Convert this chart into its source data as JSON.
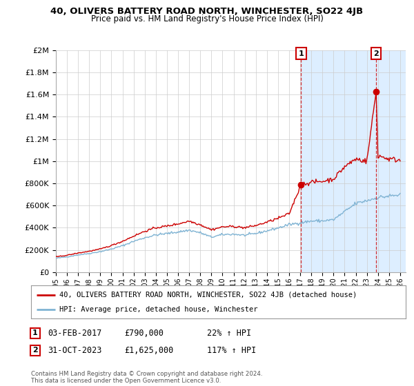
{
  "title": "40, OLIVERS BATTERY ROAD NORTH, WINCHESTER, SO22 4JB",
  "subtitle": "Price paid vs. HM Land Registry's House Price Index (HPI)",
  "ylim": [
    0,
    2000000
  ],
  "xlim_start": 1995.0,
  "xlim_end": 2026.5,
  "yticks": [
    0,
    200000,
    400000,
    600000,
    800000,
    1000000,
    1200000,
    1400000,
    1600000,
    1800000,
    2000000
  ],
  "ytick_labels": [
    "£0",
    "£200K",
    "£400K",
    "£600K",
    "£800K",
    "£1M",
    "£1.2M",
    "£1.4M",
    "£1.6M",
    "£1.8M",
    "£2M"
  ],
  "xtick_years": [
    1995,
    1996,
    1997,
    1998,
    1999,
    2000,
    2001,
    2002,
    2003,
    2004,
    2005,
    2006,
    2007,
    2008,
    2009,
    2010,
    2011,
    2012,
    2013,
    2014,
    2015,
    2016,
    2017,
    2018,
    2019,
    2020,
    2021,
    2022,
    2023,
    2024,
    2025,
    2026
  ],
  "line1_color": "#cc0000",
  "line2_color": "#7fb3d3",
  "fill_color": "#ddeeff",
  "point1_x": 2017.08,
  "point1_y": 790000,
  "point2_x": 2023.83,
  "point2_y": 1625000,
  "legend_line1": "40, OLIVERS BATTERY ROAD NORTH, WINCHESTER, SO22 4JB (detached house)",
  "legend_line2": "HPI: Average price, detached house, Winchester",
  "footnote": "Contains HM Land Registry data © Crown copyright and database right 2024.\nThis data is licensed under the Open Government Licence v3.0.",
  "background_color": "#ffffff",
  "grid_color": "#cccccc",
  "fig_width": 6.0,
  "fig_height": 5.6,
  "hpi_anchors_x": [
    1995,
    1996,
    1997,
    1998,
    1999,
    2000,
    2001,
    2002,
    2003,
    2004,
    2005,
    2006,
    2007,
    2008,
    2009,
    2010,
    2011,
    2012,
    2013,
    2014,
    2015,
    2016,
    2017,
    2018,
    2019,
    2020,
    2021,
    2022,
    2023,
    2024,
    2025,
    2026
  ],
  "hpi_anchors_y": [
    125000,
    138000,
    155000,
    168000,
    185000,
    208000,
    238000,
    278000,
    310000,
    335000,
    348000,
    362000,
    378000,
    355000,
    315000,
    338000,
    342000,
    332000,
    348000,
    372000,
    398000,
    428000,
    445000,
    460000,
    462000,
    472000,
    545000,
    618000,
    645000,
    672000,
    685000,
    695000
  ],
  "prop_anchors_x": [
    1995,
    1996,
    1997,
    1998,
    1999,
    2000,
    2001,
    2002,
    2003,
    2004,
    2005,
    2006,
    2007,
    2008,
    2009,
    2010,
    2011,
    2012,
    2013,
    2014,
    2015,
    2016,
    2017.08,
    2017.1,
    2018,
    2019,
    2020,
    2021,
    2022,
    2023,
    2023.83,
    2023.84,
    2024,
    2025,
    2026
  ],
  "prop_anchors_y": [
    138000,
    152000,
    172000,
    188000,
    208000,
    240000,
    278000,
    325000,
    368000,
    400000,
    415000,
    435000,
    460000,
    428000,
    382000,
    408000,
    412000,
    400000,
    420000,
    450000,
    485000,
    525000,
    790000,
    790000,
    810000,
    818000,
    840000,
    950000,
    1020000,
    1000000,
    1625000,
    1625000,
    1050000,
    1020000,
    1010000
  ]
}
